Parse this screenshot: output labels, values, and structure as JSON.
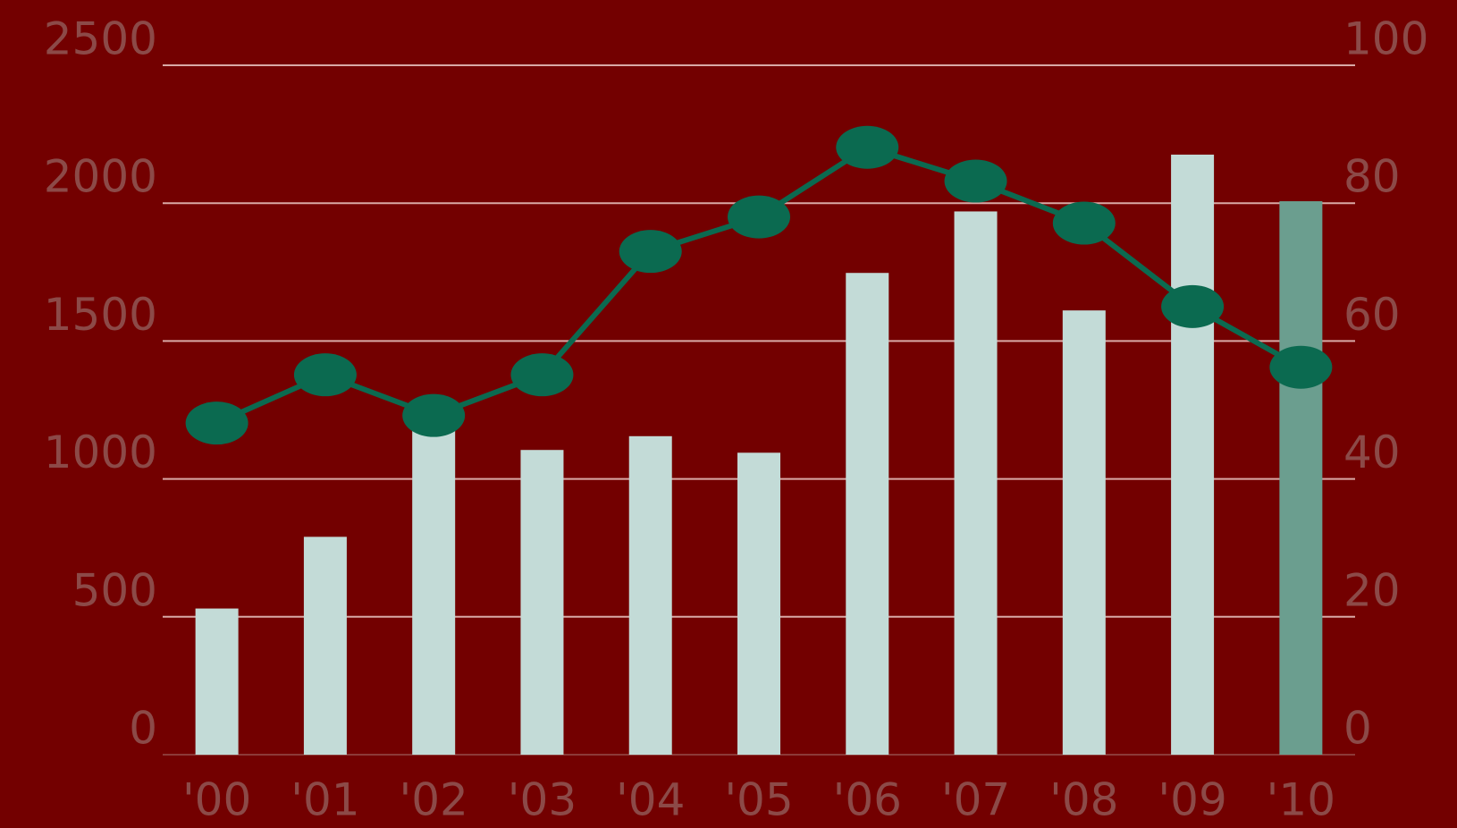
{
  "chart_data": {
    "type": "bar-line",
    "categories": [
      "'00",
      "'01",
      "'02",
      "'03",
      "'04",
      "'05",
      "'06",
      "'07",
      "'08",
      "'09",
      "'10"
    ],
    "series": [
      {
        "type": "bar",
        "colors": [
          "#c3dbd7",
          "#c3dbd7",
          "#c3dbd7",
          "#c3dbd7",
          "#c3dbd7",
          "#c3dbd7",
          "#c3dbd7",
          "#c3dbd7",
          "#c3dbd7",
          "#c3dbd7",
          "#6b9e8f"
        ],
        "values": [
          530,
          790,
          1180,
          1105,
          1155,
          1095,
          1747,
          1970,
          1611,
          2176,
          2007
        ]
      },
      {
        "type": "line",
        "axis": "y2",
        "color": "#0b6a50",
        "values": [
          48.1,
          55.1,
          49.2,
          55.1,
          73.0,
          78.0,
          88.1,
          83.2,
          77.1,
          65.0,
          56.2
        ]
      }
    ],
    "ylim": [
      0,
      2500
    ],
    "yticks": [
      0,
      500,
      1000,
      1500,
      2000,
      2500
    ],
    "y2lim": [
      0,
      100
    ],
    "y2ticks": [
      0,
      20,
      40,
      60,
      80,
      100
    ],
    "grid": true
  }
}
